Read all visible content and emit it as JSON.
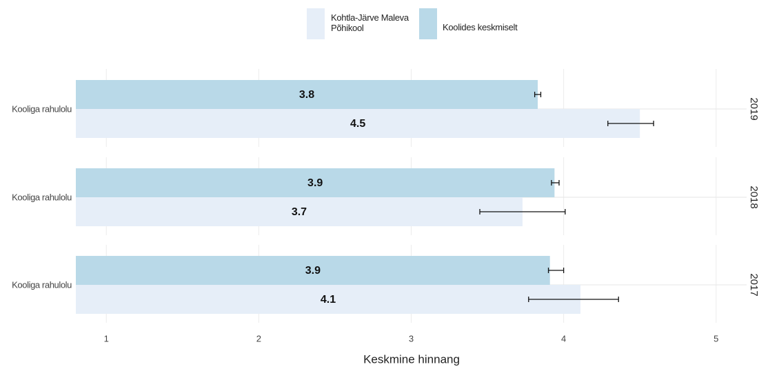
{
  "chart_data": {
    "type": "bar",
    "orientation": "horizontal",
    "xlabel": "Keskmine hinnang",
    "xlim": [
      0.8,
      5.2
    ],
    "xticks": [
      1,
      2,
      3,
      4,
      5
    ],
    "grid": true,
    "legend": "top",
    "facets": [
      "2019",
      "2018",
      "2017"
    ],
    "categories": [
      "Kooliga rahulolu",
      "Kooliga rahulolu",
      "Kooliga rahulolu"
    ],
    "series": [
      {
        "name": "Kohtla-Järve Maleva Põhikool",
        "color": "#e6eef8",
        "values": [
          4.5,
          3.73,
          4.11
        ],
        "value_labels": [
          "4.5",
          "3.7",
          "4.1"
        ],
        "err_low": [
          4.29,
          3.45,
          3.77
        ],
        "err_high": [
          4.59,
          4.01,
          4.36
        ]
      },
      {
        "name": "Koolides keskmiselt",
        "color": "#b9d9e8",
        "values": [
          3.83,
          3.94,
          3.91
        ],
        "value_labels": [
          "3.8",
          "3.9",
          "3.9"
        ],
        "err_low": [
          3.81,
          3.92,
          3.9
        ],
        "err_high": [
          3.85,
          3.97,
          4.0
        ]
      }
    ]
  }
}
